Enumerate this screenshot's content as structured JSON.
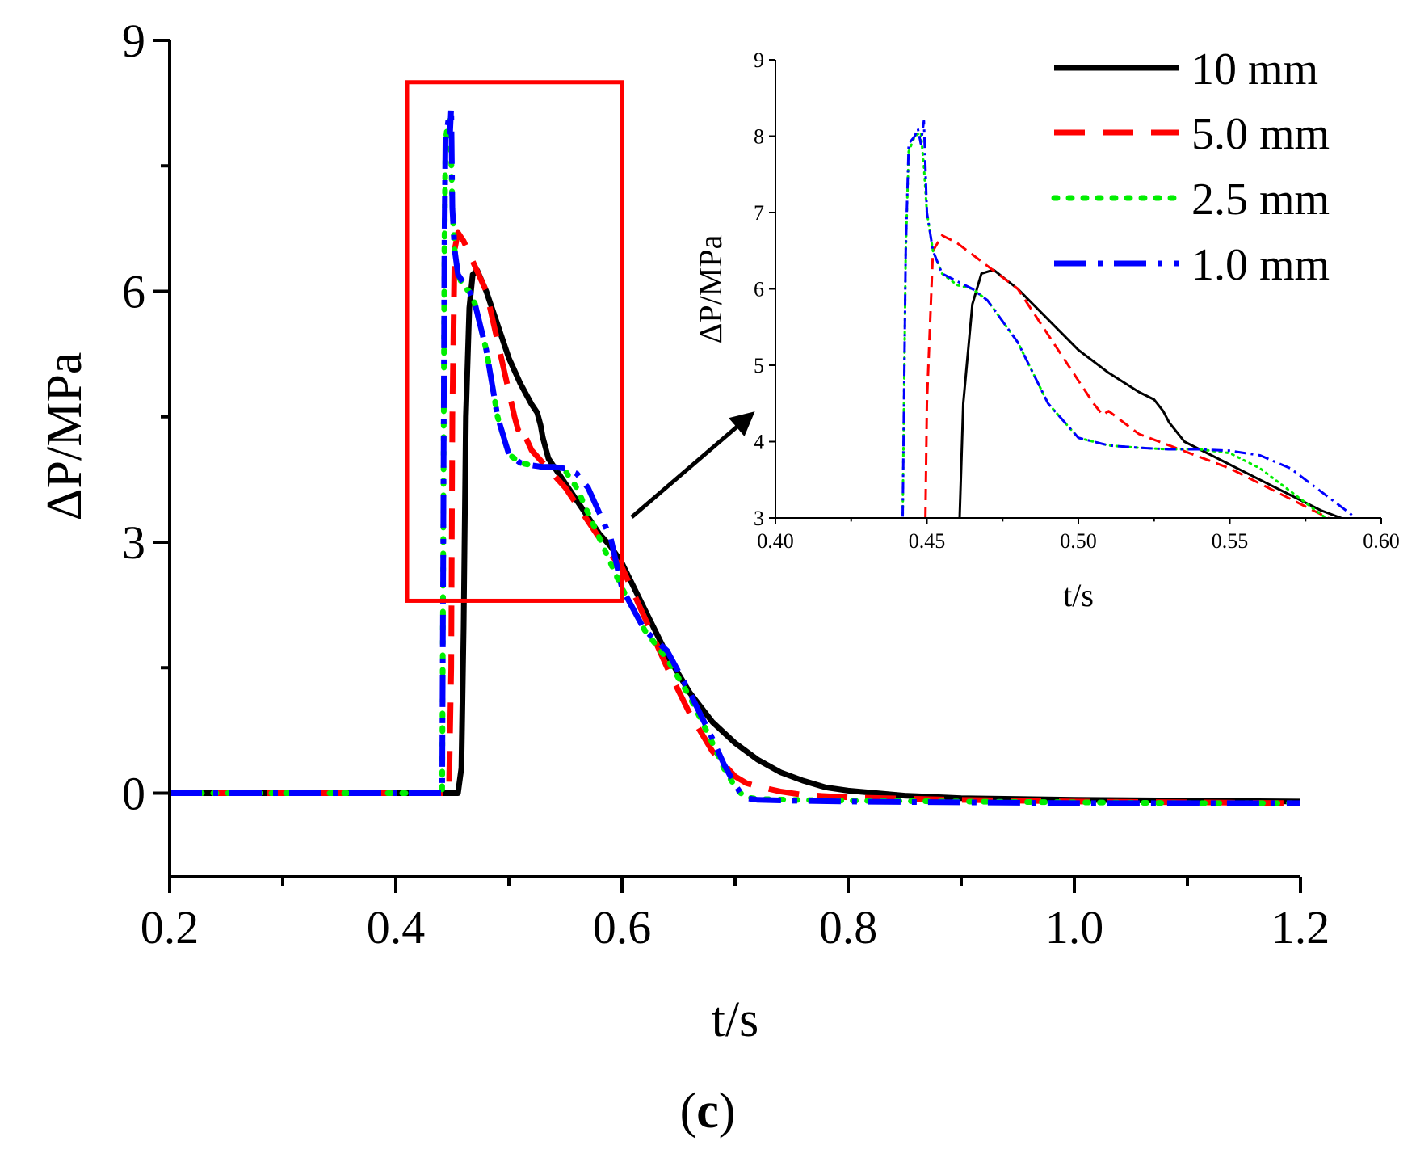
{
  "panel_label": {
    "open": "(",
    "letter": "c",
    "close": ")"
  },
  "colors": {
    "s10": "#000000",
    "s5": "#ff0000",
    "s25": "#00ee00",
    "s1": "#0000ff",
    "zoom_box": "#ff0000",
    "arrow": "#000000"
  },
  "chart_data": [
    {
      "name": "main",
      "type": "line",
      "title": "",
      "xlabel": "t/s",
      "ylabel": "ΔP/MPa",
      "xlim": [
        0.2,
        1.2
      ],
      "ylim": [
        -1,
        9
      ],
      "xticks": [
        0.2,
        0.4,
        0.6,
        0.8,
        1.0,
        1.2
      ],
      "xtick_labels": [
        "0.2",
        "0.4",
        "0.6",
        "0.8",
        "1.0",
        "1.2"
      ],
      "yticks": [
        0,
        3,
        6,
        9
      ],
      "ytick_labels": [
        "0",
        "3",
        "6",
        "9"
      ],
      "zoom_region": {
        "x": [
          0.41,
          0.6
        ],
        "y": [
          2.3,
          8.5
        ]
      },
      "series": [
        {
          "name": "10 mm",
          "style": "solid",
          "color": "#000000",
          "x": [
            0.2,
            0.455,
            0.458,
            0.46,
            0.462,
            0.465,
            0.468,
            0.472,
            0.48,
            0.49,
            0.5,
            0.51,
            0.52,
            0.525,
            0.528,
            0.53,
            0.535,
            0.54,
            0.55,
            0.56,
            0.57,
            0.58,
            0.59,
            0.6,
            0.62,
            0.64,
            0.66,
            0.68,
            0.7,
            0.72,
            0.74,
            0.76,
            0.78,
            0.8,
            0.85,
            0.9,
            1.0,
            1.1,
            1.2
          ],
          "y": [
            0,
            0,
            0.3,
            2.0,
            4.5,
            5.8,
            6.2,
            6.25,
            6.0,
            5.6,
            5.2,
            4.9,
            4.65,
            4.55,
            4.4,
            4.25,
            4.0,
            3.9,
            3.7,
            3.5,
            3.3,
            3.1,
            2.95,
            2.75,
            2.2,
            1.65,
            1.2,
            0.85,
            0.6,
            0.4,
            0.25,
            0.15,
            0.07,
            0.03,
            -0.03,
            -0.06,
            -0.08,
            -0.09,
            -0.1
          ]
        },
        {
          "name": "5.0 mm",
          "style": "dashed",
          "color": "#ff0000",
          "x": [
            0.2,
            0.447,
            0.449,
            0.45,
            0.452,
            0.455,
            0.46,
            0.47,
            0.48,
            0.49,
            0.5,
            0.505,
            0.508,
            0.51,
            0.52,
            0.53,
            0.54,
            0.55,
            0.56,
            0.57,
            0.58,
            0.59,
            0.6,
            0.62,
            0.64,
            0.66,
            0.68,
            0.7,
            0.71,
            0.72,
            0.74,
            0.76,
            0.8,
            0.9,
            1.0,
            1.1,
            1.2
          ],
          "y": [
            0,
            0,
            1.5,
            4.5,
            6.5,
            6.7,
            6.6,
            6.3,
            6.0,
            5.4,
            4.8,
            4.5,
            4.35,
            4.4,
            4.1,
            3.95,
            3.8,
            3.65,
            3.45,
            3.25,
            3.05,
            2.85,
            2.7,
            2.1,
            1.5,
            0.95,
            0.5,
            0.2,
            0.12,
            0.08,
            0.02,
            -0.02,
            -0.05,
            -0.08,
            -0.1,
            -0.11,
            -0.12
          ]
        },
        {
          "name": "2.5 mm",
          "style": "dotted",
          "color": "#00ee00",
          "x": [
            0.2,
            0.441,
            0.442,
            0.443,
            0.444,
            0.446,
            0.448,
            0.449,
            0.45,
            0.452,
            0.455,
            0.46,
            0.465,
            0.47,
            0.48,
            0.49,
            0.5,
            0.51,
            0.52,
            0.53,
            0.54,
            0.55,
            0.56,
            0.57,
            0.58,
            0.59,
            0.6,
            0.62,
            0.64,
            0.66,
            0.68,
            0.69,
            0.7,
            0.705,
            0.71,
            0.72,
            0.75,
            0.8,
            0.9,
            1.0,
            1.1,
            1.2
          ],
          "y": [
            0,
            0,
            3.0,
            6.5,
            7.8,
            8.0,
            8.05,
            7.6,
            7.0,
            6.5,
            6.2,
            6.05,
            6.0,
            5.85,
            5.3,
            4.5,
            4.05,
            3.95,
            3.92,
            3.9,
            3.9,
            3.85,
            3.65,
            3.35,
            3.05,
            2.75,
            2.45,
            1.95,
            1.6,
            1.15,
            0.6,
            0.3,
            0.08,
            0.0,
            -0.05,
            -0.07,
            -0.08,
            -0.09,
            -0.1,
            -0.11,
            -0.12,
            -0.12
          ]
        },
        {
          "name": "1.0 mm",
          "style": "dashdot",
          "color": "#0000ff",
          "x": [
            0.2,
            0.441,
            0.442,
            0.443,
            0.444,
            0.446,
            0.447,
            0.448,
            0.449,
            0.45,
            0.452,
            0.455,
            0.46,
            0.465,
            0.47,
            0.48,
            0.49,
            0.5,
            0.51,
            0.52,
            0.53,
            0.54,
            0.55,
            0.56,
            0.57,
            0.58,
            0.59,
            0.6,
            0.62,
            0.64,
            0.66,
            0.68,
            0.69,
            0.7,
            0.705,
            0.71,
            0.72,
            0.75,
            0.8,
            0.9,
            1.0,
            1.1,
            1.2
          ],
          "y": [
            0,
            0,
            3.0,
            6.5,
            7.9,
            8.0,
            8.1,
            7.9,
            8.2,
            7.0,
            6.5,
            6.2,
            6.1,
            6.0,
            5.85,
            5.3,
            4.5,
            4.05,
            3.95,
            3.92,
            3.9,
            3.9,
            3.88,
            3.82,
            3.65,
            3.35,
            3.05,
            2.45,
            1.95,
            1.7,
            1.2,
            0.65,
            0.35,
            0.1,
            0.0,
            -0.06,
            -0.08,
            -0.09,
            -0.1,
            -0.11,
            -0.12,
            -0.12,
            -0.12
          ]
        }
      ]
    },
    {
      "name": "inset",
      "type": "line",
      "title": "",
      "xlabel": "t/s",
      "ylabel": "ΔP/MPa",
      "xlim": [
        0.4,
        0.6
      ],
      "ylim": [
        3,
        9
      ],
      "xticks": [
        0.4,
        0.45,
        0.5,
        0.55,
        0.6
      ],
      "xtick_labels": [
        "0.40",
        "0.45",
        "0.50",
        "0.55",
        "0.60"
      ],
      "yticks": [
        3,
        4,
        5,
        6,
        7,
        8,
        9
      ],
      "ytick_labels": [
        "3",
        "4",
        "5",
        "6",
        "7",
        "8",
        "9"
      ],
      "legend_position": "top-right",
      "series_ref": "main"
    }
  ]
}
